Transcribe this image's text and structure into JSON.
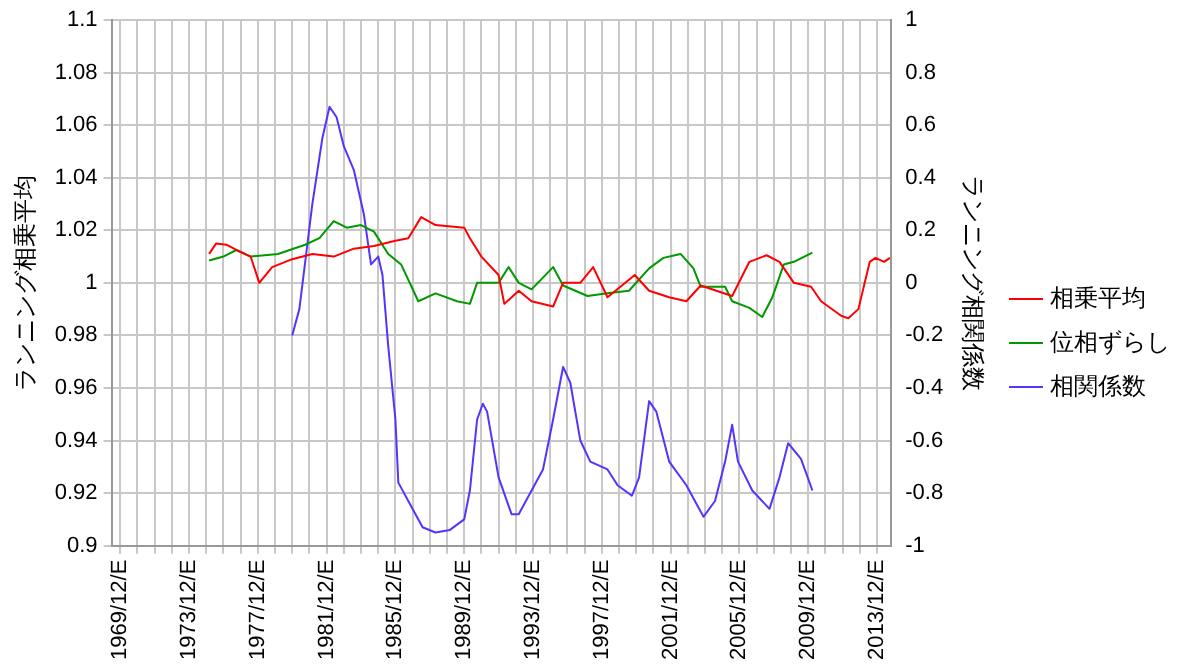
{
  "chart_data": {
    "type": "line",
    "ylabel": "ランニング相乗平均",
    "y2label": "ランニング相関係数",
    "xlim": [
      "1969-06",
      "2014-10"
    ],
    "xticks": [
      {
        "value": "1969-12",
        "label": "1969/12/E"
      },
      {
        "value": "1970-12",
        "label": null
      },
      {
        "value": "1971-12",
        "label": null
      },
      {
        "value": "1972-12",
        "label": null
      },
      {
        "value": "1973-12",
        "label": "1973/12/E"
      },
      {
        "value": "1974-12",
        "label": null
      },
      {
        "value": "1975-12",
        "label": null
      },
      {
        "value": "1976-12",
        "label": null
      },
      {
        "value": "1977-12",
        "label": "1977/12/E"
      },
      {
        "value": "1978-12",
        "label": null
      },
      {
        "value": "1979-12",
        "label": null
      },
      {
        "value": "1980-12",
        "label": null
      },
      {
        "value": "1981-12",
        "label": "1981/12/E"
      },
      {
        "value": "1982-12",
        "label": null
      },
      {
        "value": "1983-12",
        "label": null
      },
      {
        "value": "1984-12",
        "label": null
      },
      {
        "value": "1985-12",
        "label": "1985/12/E"
      },
      {
        "value": "1986-12",
        "label": null
      },
      {
        "value": "1987-12",
        "label": null
      },
      {
        "value": "1988-12",
        "label": null
      },
      {
        "value": "1989-12",
        "label": "1989/12/E"
      },
      {
        "value": "1990-12",
        "label": null
      },
      {
        "value": "1991-12",
        "label": null
      },
      {
        "value": "1992-12",
        "label": null
      },
      {
        "value": "1993-12",
        "label": "1993/12/E"
      },
      {
        "value": "1994-12",
        "label": null
      },
      {
        "value": "1995-12",
        "label": null
      },
      {
        "value": "1996-12",
        "label": null
      },
      {
        "value": "1997-12",
        "label": "1997/12/E"
      },
      {
        "value": "1998-12",
        "label": null
      },
      {
        "value": "1999-12",
        "label": null
      },
      {
        "value": "2000-12",
        "label": null
      },
      {
        "value": "2001-12",
        "label": "2001/12/E"
      },
      {
        "value": "2002-12",
        "label": null
      },
      {
        "value": "2003-12",
        "label": null
      },
      {
        "value": "2004-12",
        "label": null
      },
      {
        "value": "2005-12",
        "label": "2005/12/E"
      },
      {
        "value": "2006-12",
        "label": null
      },
      {
        "value": "2007-12",
        "label": null
      },
      {
        "value": "2008-12",
        "label": null
      },
      {
        "value": "2009-12",
        "label": "2009/12/E"
      },
      {
        "value": "2010-12",
        "label": null
      },
      {
        "value": "2011-12",
        "label": null
      },
      {
        "value": "2012-12",
        "label": null
      },
      {
        "value": "2013-12",
        "label": "2013/12/E"
      }
    ],
    "ylim": [
      0.9,
      1.1
    ],
    "yticks": [
      0.9,
      0.92,
      0.94,
      0.96,
      0.98,
      1,
      1.02,
      1.04,
      1.06,
      1.08,
      1.1
    ],
    "y2lim": [
      -1,
      1
    ],
    "y2ticks": [
      -1,
      -0.8,
      -0.6,
      -0.4,
      -0.2,
      0,
      0.2,
      0.4,
      0.6,
      0.8,
      1
    ],
    "grid": true,
    "legend": "right",
    "marker": "none",
    "line_style": "solid",
    "series": [
      {
        "name": "相乗平均",
        "color": "#ff0000",
        "x": [
          "1975-02",
          "1975-07",
          "1976-02",
          "1976-09",
          "1977-07",
          "1978-01",
          "1978-10",
          "1979-12",
          "1981-02",
          "1982-05",
          "1983-07",
          "1984-09",
          "1985-12",
          "1986-09",
          "1987-06",
          "1988-04",
          "1989-12",
          "1990-04",
          "1990-12",
          "1991-12",
          "1992-04",
          "1993-02",
          "1993-11",
          "1995-02",
          "1995-09",
          "1996-09",
          "1997-06",
          "1998-04",
          "1999-11",
          "2000-09",
          "2001-11",
          "2002-11",
          "2003-09",
          "2005-07",
          "2006-07",
          "2007-07",
          "2008-04",
          "2009-02",
          "2010-02",
          "2010-09",
          "2011-11",
          "2012-04",
          "2012-11",
          "2013-07",
          "2013-11",
          "2014-05",
          "2014-09"
        ],
        "values": [
          1.011,
          1.015,
          1.0145,
          1.0125,
          1.01,
          1.0,
          1.006,
          1.009,
          1.011,
          1.01,
          1.013,
          1.014,
          1.016,
          1.017,
          1.025,
          1.022,
          1.021,
          1.017,
          1.01,
          1.003,
          0.992,
          0.997,
          0.993,
          0.991,
          1.0,
          1.0,
          1.006,
          0.9945,
          1.003,
          0.997,
          0.9945,
          0.993,
          0.999,
          0.995,
          1.008,
          1.0105,
          1.008,
          1.0,
          0.9985,
          0.993,
          0.9875,
          0.9865,
          0.99,
          1.008,
          1.0095,
          1.008,
          1.0095
        ]
      },
      {
        "name": "位相ずらし",
        "color": "#009900",
        "x": [
          "1975-02",
          "1975-12",
          "1976-09",
          "1977-07",
          "1979-02",
          "1980-09",
          "1981-07",
          "1982-05",
          "1983-02",
          "1983-12",
          "1984-09",
          "1985-07",
          "1986-04",
          "1987-04",
          "1988-04",
          "1989-07",
          "1990-04",
          "1990-09",
          "1991-12",
          "1992-07",
          "1993-02",
          "1993-11",
          "1995-02",
          "1995-09",
          "1997-02",
          "1998-04",
          "1999-07",
          "2000-09",
          "2001-07",
          "2002-07",
          "2003-04",
          "2003-09",
          "2005-02",
          "2005-07",
          "2006-07",
          "2007-04",
          "2007-11",
          "2008-07",
          "2009-02",
          "2010-03"
        ],
        "values": [
          1.0085,
          1.01,
          1.0125,
          1.01,
          1.011,
          1.0145,
          1.017,
          1.0235,
          1.021,
          1.022,
          1.0195,
          1.011,
          1.007,
          0.993,
          0.996,
          0.993,
          0.992,
          1.0,
          1.0,
          1.006,
          1.0,
          0.9975,
          1.006,
          0.999,
          0.995,
          0.996,
          0.997,
          1.0055,
          1.0095,
          1.011,
          1.0055,
          0.9985,
          0.9985,
          0.993,
          0.9905,
          0.987,
          0.9945,
          1.007,
          1.008,
          1.0115
        ]
      },
      {
        "name": "相関係数",
        "color": "#5533ff",
        "axis": "y2",
        "x": [
          "1979-12",
          "1980-05",
          "1981-02",
          "1981-09",
          "1982-02",
          "1982-07",
          "1982-12",
          "1983-07",
          "1984-02",
          "1984-07",
          "1984-12",
          "1985-03",
          "1985-07",
          "1985-12",
          "1986-02",
          "1986-09",
          "1987-07",
          "1988-04",
          "1989-02",
          "1989-12",
          "1990-04",
          "1990-09",
          "1991-01",
          "1991-04",
          "1991-12",
          "1992-09",
          "1993-02",
          "1993-11",
          "1994-07",
          "1995-02",
          "1995-09",
          "1996-02",
          "1996-09",
          "1997-04",
          "1998-04",
          "1998-11",
          "1999-09",
          "2000-02",
          "2000-09",
          "2001-02",
          "2001-11",
          "2002-11",
          "2003-07",
          "2003-11",
          "2004-07",
          "2005-02",
          "2005-07",
          "2005-11",
          "2006-09",
          "2007-09",
          "2008-04",
          "2008-10",
          "2009-07",
          "2010-03"
        ],
        "values": [
          -0.2,
          -0.1,
          0.3,
          0.55,
          0.67,
          0.63,
          0.52,
          0.43,
          0.26,
          0.07,
          0.1,
          0.03,
          -0.24,
          -0.52,
          -0.76,
          -0.83,
          -0.93,
          -0.95,
          -0.94,
          -0.9,
          -0.79,
          -0.52,
          -0.46,
          -0.49,
          -0.74,
          -0.88,
          -0.88,
          -0.79,
          -0.71,
          -0.52,
          -0.32,
          -0.38,
          -0.6,
          -0.68,
          -0.71,
          -0.77,
          -0.81,
          -0.74,
          -0.45,
          -0.49,
          -0.68,
          -0.77,
          -0.85,
          -0.89,
          -0.83,
          -0.68,
          -0.54,
          -0.68,
          -0.79,
          -0.86,
          -0.74,
          -0.61,
          -0.67,
          -0.79
        ]
      }
    ]
  }
}
